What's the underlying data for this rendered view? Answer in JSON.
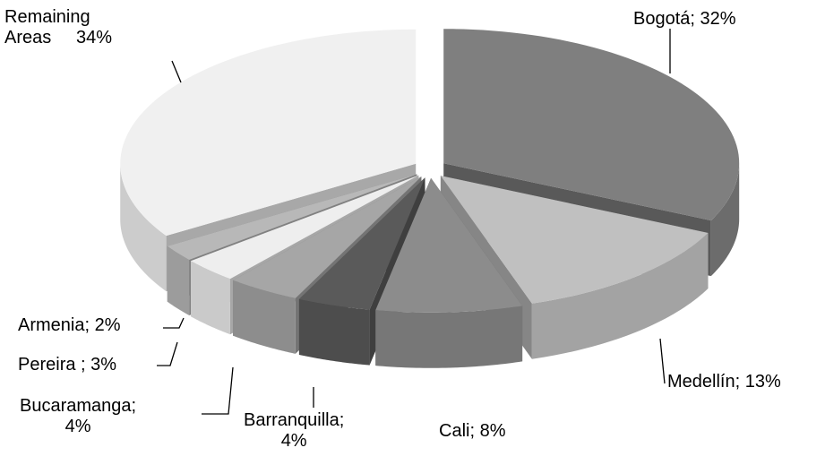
{
  "chart_data": {
    "type": "pie",
    "categories": [
      "Bogotá; 32%",
      "Medellín; 13%",
      "Cali; 8%",
      "Barranquilla;\n4%",
      "Bucaramanga;\n4%",
      "Pereira ; 3%",
      "Armenia; 2%",
      "Remaining\nAreas     34%"
    ],
    "values": [
      32,
      13,
      8,
      4,
      4,
      3,
      2,
      34
    ],
    "colors": [
      "#7f7f7f",
      "#c0c0c0",
      "#8c8c8c",
      "#5a5a5a",
      "#a6a6a6",
      "#eeeeee",
      "#b8b8b8",
      "#f0f0f0"
    ]
  }
}
